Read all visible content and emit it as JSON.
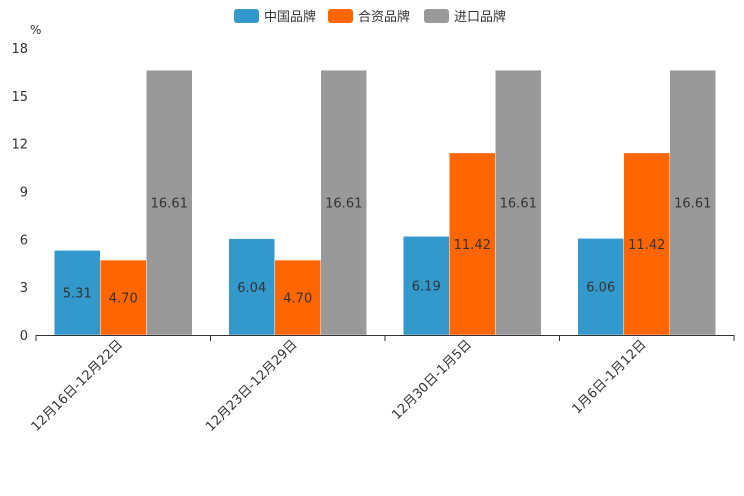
{
  "chart_data": {
    "type": "bar",
    "unit": "%",
    "categories": [
      "12月16日-12月22日",
      "12月23日-12月29日",
      "12月30日-1月5日",
      "1月6日-1月12日"
    ],
    "series": [
      {
        "name": "中国品牌",
        "color": "#3399cc",
        "values": [
          5.31,
          6.04,
          6.19,
          6.06
        ],
        "labels": [
          "5.31",
          "6.04",
          "6.19",
          "6.06"
        ]
      },
      {
        "name": "合资品牌",
        "color": "#ff6600",
        "values": [
          4.7,
          4.7,
          11.42,
          11.42
        ],
        "labels": [
          "4.70",
          "4.70",
          "11.42",
          "11.42"
        ]
      },
      {
        "name": "进口品牌",
        "color": "#999999",
        "values": [
          16.61,
          16.61,
          16.61,
          16.61
        ],
        "labels": [
          "16.61",
          "16.61",
          "16.61",
          "16.61"
        ]
      }
    ],
    "yticks": [
      0,
      3,
      6,
      9,
      12,
      15,
      18
    ],
    "ylim": [
      0,
      18
    ],
    "legend_position": "top-center",
    "grid": false
  }
}
